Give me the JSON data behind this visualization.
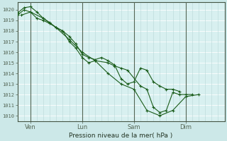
{
  "bg_color": "#cce8e8",
  "plot_bg_color": "#d8f0f0",
  "grid_h_color": "#ffffff",
  "grid_v_color": "#b8d8d8",
  "day_line_color": "#556655",
  "line_color": "#1a5c1a",
  "xlabel": "Pression niveau de la mer( hPa )",
  "ylim": [
    1009.5,
    1020.7
  ],
  "yticks": [
    1010,
    1011,
    1012,
    1013,
    1014,
    1015,
    1016,
    1017,
    1018,
    1019,
    1020
  ],
  "xtick_labels": [
    "Ven",
    "Lun",
    "Sam",
    "Dim"
  ],
  "xtick_positions": [
    1,
    5,
    9,
    13
  ],
  "day_vline_positions": [
    1,
    5,
    9,
    13
  ],
  "xlim": [
    0,
    16
  ],
  "series1_x": [
    0.0,
    0.5,
    1.0,
    1.5,
    2.0,
    2.5,
    3.5,
    4.0,
    4.5,
    5.0,
    5.5,
    6.0,
    7.0,
    7.5,
    8.0,
    8.5,
    9.5,
    10.0,
    10.5,
    11.0,
    11.5,
    12.0,
    12.5,
    13.0,
    13.5
  ],
  "series1_y": [
    1019.5,
    1020.0,
    1019.8,
    1019.2,
    1019.0,
    1018.7,
    1018.0,
    1017.0,
    1016.4,
    1015.5,
    1015.0,
    1015.2,
    1015.0,
    1014.7,
    1014.5,
    1014.3,
    1012.8,
    1012.5,
    1010.8,
    1010.3,
    1010.5,
    1012.2,
    1012.0,
    1012.0,
    1012.0
  ],
  "series2_x": [
    0.0,
    0.5,
    1.0,
    1.5,
    2.0,
    2.5,
    3.0,
    3.5,
    4.0,
    4.5,
    5.0,
    5.5,
    6.0,
    6.5,
    7.0,
    7.5,
    8.0,
    8.5,
    9.0,
    9.5,
    10.0,
    10.5,
    11.0,
    11.5,
    12.0,
    12.5
  ],
  "series2_y": [
    1019.7,
    1020.2,
    1020.3,
    1019.8,
    1019.2,
    1018.8,
    1018.3,
    1018.0,
    1017.5,
    1016.8,
    1015.8,
    1015.5,
    1015.3,
    1015.5,
    1015.2,
    1014.8,
    1013.5,
    1013.0,
    1013.2,
    1014.5,
    1014.3,
    1013.2,
    1012.8,
    1012.5,
    1012.5,
    1012.3
  ],
  "series3_x": [
    0.3,
    1.0,
    2.0,
    3.0,
    4.0,
    5.0,
    6.0,
    7.0,
    8.0,
    9.0,
    10.0,
    11.0,
    12.0,
    13.0,
    14.0
  ],
  "series3_y": [
    1019.5,
    1019.8,
    1019.2,
    1018.3,
    1017.2,
    1016.0,
    1015.2,
    1014.0,
    1013.0,
    1012.5,
    1010.5,
    1010.0,
    1010.5,
    1011.8,
    1012.0
  ]
}
